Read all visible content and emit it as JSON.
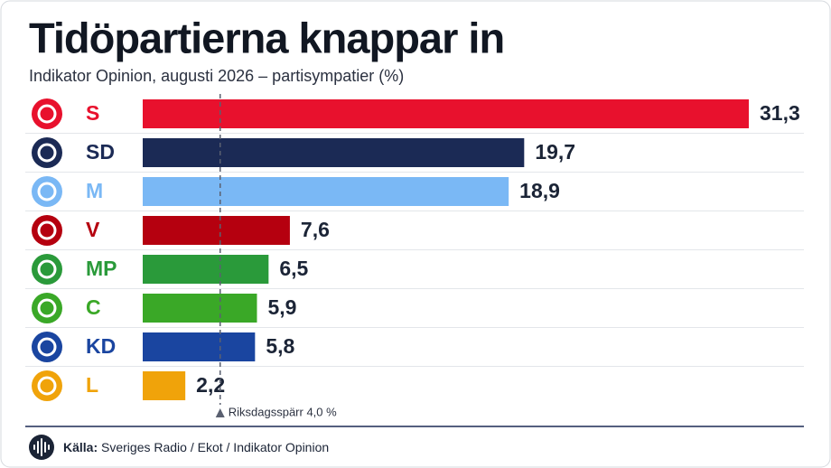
{
  "chart_data": {
    "type": "bar",
    "orientation": "horizontal",
    "title": "Tidöpartierna knappar in",
    "subtitle": "Indikator Opinion, augusti 2026 – partisympatier (%)",
    "categories": [
      "S",
      "SD",
      "M",
      "V",
      "MP",
      "C",
      "KD",
      "L"
    ],
    "values": [
      31.3,
      19.7,
      18.9,
      7.6,
      6.5,
      5.9,
      5.8,
      2.2
    ],
    "value_labels": [
      "31,3",
      "19,7",
      "18,9",
      "7,6",
      "6,5",
      "5,9",
      "5,8",
      "2,2"
    ],
    "colors": [
      "#e8112d",
      "#1b2a55",
      "#7ab8f5",
      "#b5000f",
      "#2a9a3a",
      "#3aa827",
      "#1a45a0",
      "#f0a30a"
    ],
    "xlim": [
      0,
      32
    ],
    "threshold": {
      "value": 4.0,
      "label": "Riksdagsspärr 4,0 %"
    },
    "source_label": "Källa:",
    "source": "Sveriges Radio / Ekot / Indikator Opinion"
  }
}
